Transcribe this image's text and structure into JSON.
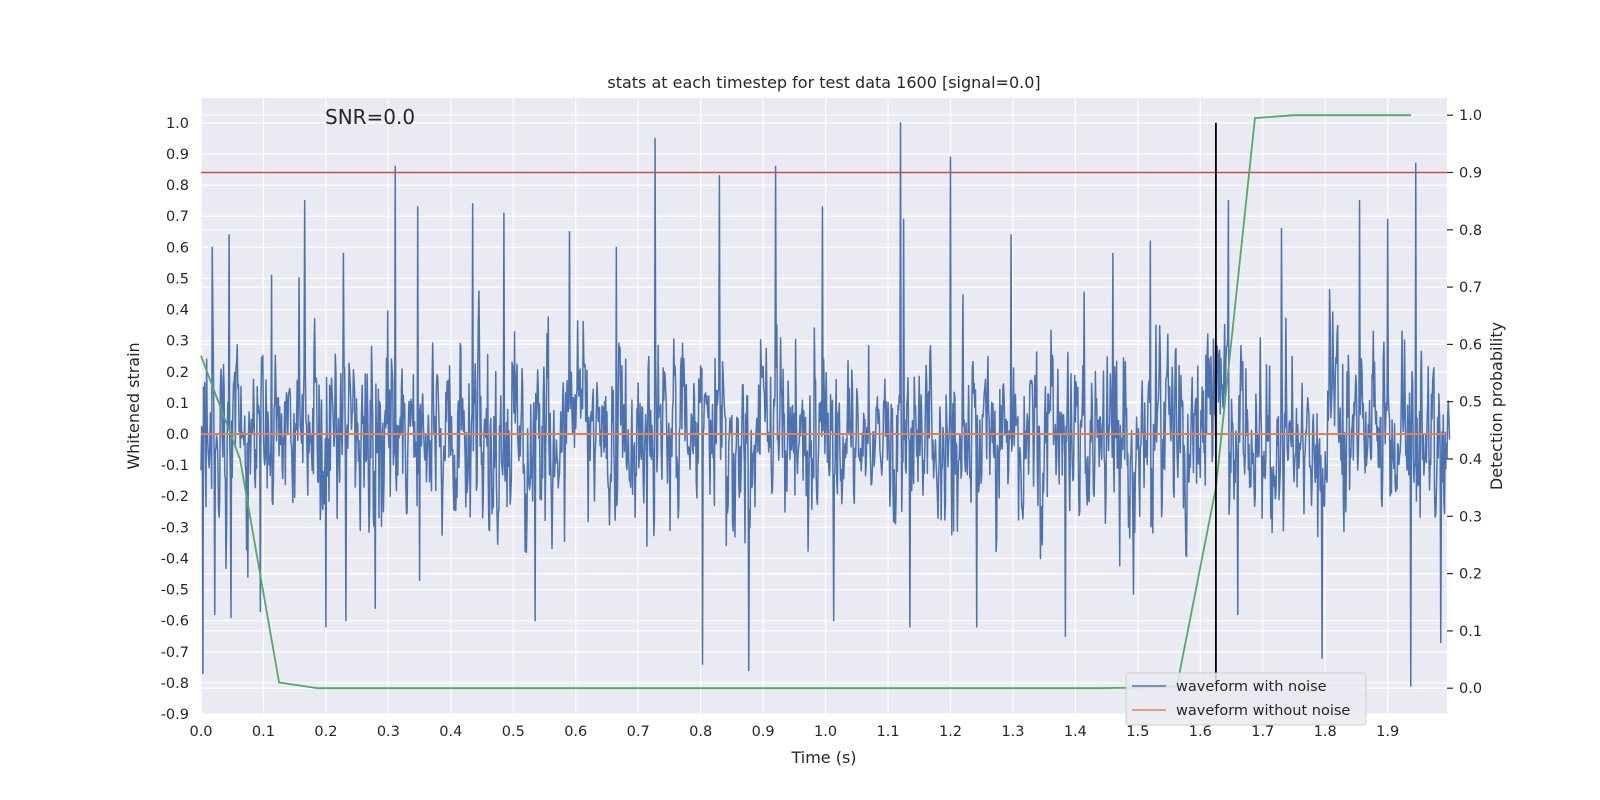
{
  "chart_data": {
    "type": "line",
    "title": "stats at each timestep for test data 1600 [signal=0.0]",
    "xlabel": "Time (s)",
    "ylabel_left": "Whitened strain",
    "ylabel_right": "Detection probability",
    "annotation": "SNR=0.0",
    "xlim": [
      0.0,
      1.995
    ],
    "ylim_left": [
      -0.9,
      1.08
    ],
    "ylim_right": [
      -0.045,
      1.03
    ],
    "x_ticks": [
      "0.0",
      "0.1",
      "0.2",
      "0.3",
      "0.4",
      "0.5",
      "0.6",
      "0.7",
      "0.8",
      "0.9",
      "1.0",
      "1.1",
      "1.2",
      "1.3",
      "1.4",
      "1.5",
      "1.6",
      "1.7",
      "1.8",
      "1.9"
    ],
    "y_ticks_left": [
      "-0.9",
      "-0.8",
      "-0.7",
      "-0.6",
      "-0.5",
      "-0.4",
      "-0.3",
      "-0.2",
      "-0.1",
      "0.0",
      "0.1",
      "0.2",
      "0.3",
      "0.4",
      "0.5",
      "0.6",
      "0.7",
      "0.8",
      "0.9",
      "1.0"
    ],
    "y_ticks_right": [
      "0.0",
      "0.1",
      "0.2",
      "0.3",
      "0.4",
      "0.5",
      "0.6",
      "0.7",
      "0.8",
      "0.9",
      "1.0"
    ],
    "threshold": {
      "value": 0.9,
      "axis": "right",
      "color": "#c44e52"
    },
    "vertical_marker": {
      "x": 1.625,
      "y_range": [
        -0.8,
        1.0
      ],
      "color": "#000000"
    },
    "noise_series": {
      "name": "waveform with noise",
      "color": "#4c72b0",
      "n_points": 2000,
      "dt": 0.001,
      "typical_range": [
        -0.6,
        0.6
      ],
      "peaks": [
        {
          "x": 0.003,
          "y": -0.77
        },
        {
          "x": 0.018,
          "y": 0.6
        },
        {
          "x": 0.022,
          "y": -0.58
        },
        {
          "x": 0.045,
          "y": 0.64
        },
        {
          "x": 0.048,
          "y": -0.59
        },
        {
          "x": 0.075,
          "y": -0.46
        },
        {
          "x": 0.095,
          "y": -0.57
        },
        {
          "x": 0.113,
          "y": 0.51
        },
        {
          "x": 0.166,
          "y": 0.75
        },
        {
          "x": 0.2,
          "y": -0.62
        },
        {
          "x": 0.228,
          "y": 0.58
        },
        {
          "x": 0.232,
          "y": -0.6
        },
        {
          "x": 0.279,
          "y": -0.56
        },
        {
          "x": 0.311,
          "y": 0.86
        },
        {
          "x": 0.347,
          "y": 0.73
        },
        {
          "x": 0.35,
          "y": -0.47
        },
        {
          "x": 0.435,
          "y": 0.74
        },
        {
          "x": 0.485,
          "y": 0.71
        },
        {
          "x": 0.535,
          "y": -0.6
        },
        {
          "x": 0.59,
          "y": 0.65
        },
        {
          "x": 0.665,
          "y": 0.6
        },
        {
          "x": 0.727,
          "y": 0.95
        },
        {
          "x": 0.803,
          "y": -0.74
        },
        {
          "x": 0.83,
          "y": 0.83
        },
        {
          "x": 0.877,
          "y": -0.76
        },
        {
          "x": 0.92,
          "y": 0.86
        },
        {
          "x": 0.995,
          "y": 0.73
        },
        {
          "x": 1.013,
          "y": -0.6
        },
        {
          "x": 1.12,
          "y": 1.0
        },
        {
          "x": 1.125,
          "y": 0.69
        },
        {
          "x": 1.135,
          "y": -0.62
        },
        {
          "x": 1.2,
          "y": 0.89
        },
        {
          "x": 1.242,
          "y": -0.62
        },
        {
          "x": 1.297,
          "y": 0.64
        },
        {
          "x": 1.384,
          "y": -0.65
        },
        {
          "x": 1.46,
          "y": 0.58
        },
        {
          "x": 1.52,
          "y": 0.62
        },
        {
          "x": 1.645,
          "y": 0.75
        },
        {
          "x": 1.66,
          "y": -0.58
        },
        {
          "x": 1.73,
          "y": 0.66
        },
        {
          "x": 1.795,
          "y": -0.72
        },
        {
          "x": 1.855,
          "y": 0.75
        },
        {
          "x": 1.9,
          "y": 0.69
        },
        {
          "x": 1.937,
          "y": -0.81
        },
        {
          "x": 1.945,
          "y": 0.87
        },
        {
          "x": 1.985,
          "y": -0.67
        }
      ]
    },
    "clean_series": {
      "name": "waveform without noise",
      "color": "#dd8452",
      "x": [
        0.0,
        1.995
      ],
      "y": [
        0.0,
        0.0
      ]
    },
    "probability_series": {
      "name": "Detection probability",
      "color": "#55a868",
      "x": [
        0.0,
        0.0625,
        0.125,
        0.1875,
        0.25,
        0.3125,
        0.375,
        0.4375,
        0.5,
        0.5625,
        0.625,
        0.6875,
        0.75,
        0.8125,
        0.875,
        0.9375,
        1.0,
        1.0625,
        1.125,
        1.1875,
        1.25,
        1.3125,
        1.375,
        1.4375,
        1.5,
        1.5625,
        1.625,
        1.6875,
        1.75,
        1.8125,
        1.875,
        1.9375
      ],
      "y": [
        0.58,
        0.4,
        0.01,
        0.0,
        0.0,
        0.0,
        0.0,
        0.0,
        0.0,
        0.0,
        0.0,
        0.0,
        0.0,
        0.0,
        0.0,
        0.0,
        0.0,
        0.0,
        0.0,
        0.0,
        0.0,
        0.0,
        0.0,
        0.0,
        0.001,
        0.003,
        0.35,
        0.995,
        1.0,
        1.0,
        1.0,
        1.0
      ]
    },
    "legend": {
      "location": "lower-right",
      "entries": [
        "waveform with noise",
        "waveform without noise"
      ]
    }
  }
}
